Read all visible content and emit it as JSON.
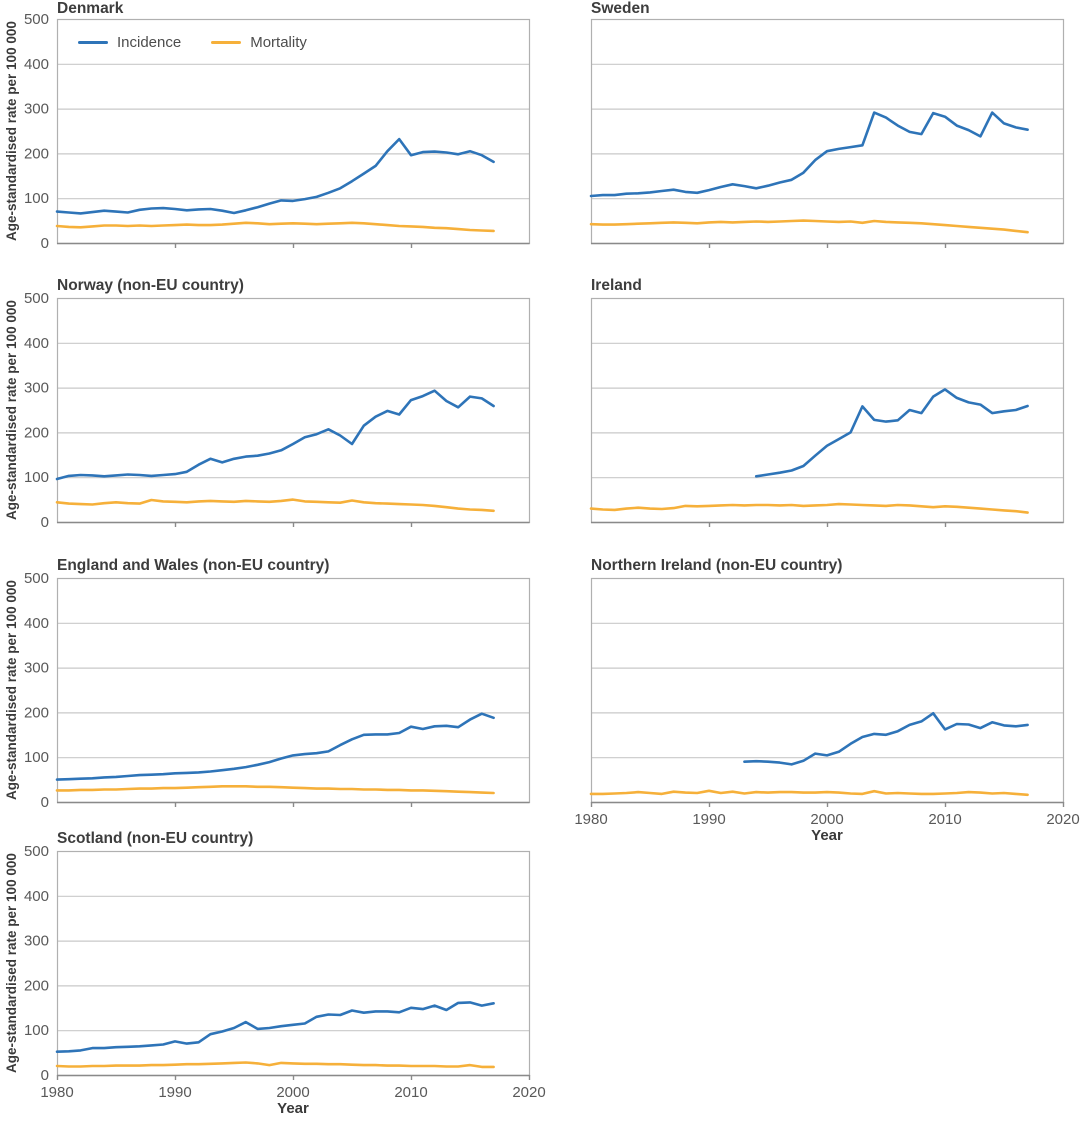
{
  "figure": {
    "panel_count": 7,
    "layout": "2-column grid, 4 rows"
  },
  "axes": {
    "x_label": "Year",
    "y_label": "Age-standardised rate per 100 000",
    "x_min": 1980,
    "x_max": 2020,
    "x_ticks": [
      1980,
      1990,
      2000,
      2010,
      2020
    ],
    "x_minor_ticks": [
      1990,
      2000,
      2010
    ],
    "y_min": 0,
    "y_max": 500,
    "y_ticks": [
      0,
      100,
      200,
      300,
      400,
      500
    ],
    "grid": true,
    "year_step": 1
  },
  "legend": {
    "position": "top-left of first panel",
    "items": [
      {
        "label": "Incidence",
        "color": "#2e74b8"
      },
      {
        "label": "Mortality",
        "color": "#f6b03a"
      }
    ]
  },
  "colors": {
    "incidence": "#2e74b8",
    "mortality": "#f6b03a",
    "grid": "#c9c9c9",
    "frame": "#b0b0b0",
    "axis": "#8a8a8a",
    "tick_text": "#595959",
    "title_text": "#3d3d3d"
  },
  "chart_data": [
    {
      "type": "line",
      "title": "Denmark",
      "series": [
        {
          "name": "Incidence",
          "start_year": 1980,
          "values": [
            70,
            68,
            66,
            69,
            72,
            70,
            68,
            74,
            77,
            78,
            76,
            73,
            75,
            76,
            72,
            67,
            73,
            80,
            88,
            95,
            94,
            98,
            103,
            112,
            122,
            138,
            155,
            172,
            205,
            232,
            196,
            203,
            204,
            202,
            198,
            205,
            196,
            181
          ]
        },
        {
          "name": "Mortality",
          "start_year": 1980,
          "values": [
            38,
            36,
            35,
            37,
            39,
            39,
            38,
            39,
            38,
            39,
            40,
            41,
            40,
            40,
            41,
            43,
            45,
            44,
            42,
            43,
            44,
            43,
            42,
            43,
            44,
            45,
            44,
            42,
            40,
            38,
            37,
            36,
            34,
            33,
            31,
            29,
            28,
            27
          ]
        }
      ]
    },
    {
      "type": "line",
      "title": "Sweden",
      "series": [
        {
          "name": "Incidence",
          "start_year": 1980,
          "values": [
            105,
            107,
            107,
            110,
            111,
            113,
            116,
            119,
            114,
            112,
            118,
            125,
            131,
            127,
            122,
            128,
            135,
            141,
            157,
            185,
            205,
            210,
            214,
            218,
            291,
            280,
            262,
            248,
            243,
            290,
            282,
            262,
            252,
            238,
            291,
            267,
            258,
            253
          ]
        },
        {
          "name": "Mortality",
          "start_year": 1980,
          "values": [
            42,
            41,
            41,
            42,
            43,
            44,
            45,
            46,
            45,
            44,
            46,
            47,
            46,
            47,
            48,
            47,
            48,
            49,
            50,
            49,
            48,
            47,
            48,
            45,
            49,
            47,
            46,
            45,
            44,
            42,
            40,
            38,
            36,
            34,
            32,
            30,
            27,
            24
          ]
        }
      ]
    },
    {
      "type": "line",
      "title": "Norway (non-EU country)",
      "series": [
        {
          "name": "Incidence",
          "start_year": 1980,
          "values": [
            96,
            103,
            105,
            104,
            102,
            104,
            106,
            105,
            103,
            105,
            107,
            112,
            128,
            141,
            133,
            141,
            146,
            148,
            153,
            160,
            174,
            189,
            196,
            207,
            193,
            174,
            215,
            235,
            248,
            240,
            272,
            281,
            293,
            270,
            256,
            280,
            276,
            259
          ]
        },
        {
          "name": "Mortality",
          "start_year": 1980,
          "values": [
            44,
            41,
            40,
            39,
            42,
            44,
            42,
            41,
            49,
            46,
            45,
            44,
            46,
            47,
            46,
            45,
            47,
            46,
            45,
            47,
            50,
            46,
            45,
            44,
            43,
            48,
            44,
            42,
            41,
            40,
            39,
            38,
            36,
            33,
            30,
            28,
            27,
            25
          ]
        }
      ]
    },
    {
      "type": "line",
      "title": "Ireland",
      "series": [
        {
          "name": "Incidence",
          "start_year": 1994,
          "values": [
            102,
            106,
            110,
            115,
            125,
            148,
            170,
            185,
            200,
            258,
            228,
            224,
            227,
            250,
            243,
            280,
            296,
            277,
            267,
            262,
            243,
            247,
            250,
            259
          ]
        },
        {
          "name": "Mortality",
          "start_year": 1980,
          "values": [
            30,
            28,
            27,
            30,
            32,
            30,
            29,
            31,
            36,
            35,
            36,
            37,
            38,
            37,
            38,
            38,
            37,
            38,
            36,
            37,
            38,
            40,
            39,
            38,
            37,
            36,
            38,
            37,
            35,
            33,
            35,
            34,
            32,
            30,
            28,
            26,
            24,
            21
          ]
        }
      ]
    },
    {
      "type": "line",
      "title": "England and Wales (non-EU country)",
      "series": [
        {
          "name": "Incidence",
          "start_year": 1980,
          "values": [
            50,
            51,
            52,
            53,
            55,
            56,
            58,
            60,
            61,
            62,
            64,
            65,
            66,
            68,
            71,
            74,
            78,
            83,
            89,
            97,
            104,
            107,
            109,
            113,
            127,
            140,
            150,
            151,
            151,
            154,
            168,
            163,
            169,
            170,
            167,
            184,
            197,
            188
          ]
        },
        {
          "name": "Mortality",
          "start_year": 1980,
          "values": [
            26,
            26,
            27,
            27,
            28,
            28,
            29,
            30,
            30,
            31,
            31,
            32,
            33,
            34,
            35,
            35,
            35,
            34,
            34,
            33,
            32,
            31,
            30,
            30,
            29,
            29,
            28,
            28,
            27,
            27,
            26,
            26,
            25,
            24,
            23,
            22,
            21,
            20
          ]
        }
      ]
    },
    {
      "type": "line",
      "title": "Northern Ireland (non-EU country)",
      "series": [
        {
          "name": "Incidence",
          "start_year": 1993,
          "values": [
            90,
            91,
            90,
            88,
            84,
            92,
            108,
            104,
            112,
            130,
            145,
            152,
            150,
            158,
            172,
            180,
            198,
            162,
            174,
            173,
            165,
            178,
            171,
            169,
            172
          ]
        },
        {
          "name": "Mortality",
          "start_year": 1980,
          "values": [
            18,
            18,
            19,
            20,
            22,
            20,
            18,
            23,
            21,
            20,
            25,
            20,
            23,
            19,
            22,
            21,
            22,
            22,
            21,
            21,
            22,
            21,
            19,
            18,
            24,
            19,
            20,
            19,
            18,
            18,
            19,
            20,
            22,
            21,
            19,
            20,
            18,
            16
          ]
        }
      ]
    },
    {
      "type": "line",
      "title": "Scotland (non-EU country)",
      "series": [
        {
          "name": "Incidence",
          "start_year": 1980,
          "values": [
            52,
            53,
            55,
            60,
            60,
            62,
            63,
            64,
            66,
            68,
            75,
            70,
            73,
            91,
            97,
            105,
            118,
            103,
            105,
            109,
            112,
            115,
            130,
            135,
            134,
            144,
            139,
            142,
            142,
            140,
            150,
            147,
            155,
            145,
            161,
            162,
            155,
            160
          ]
        },
        {
          "name": "Mortality",
          "start_year": 1980,
          "values": [
            20,
            19,
            19,
            20,
            20,
            21,
            21,
            21,
            22,
            22,
            23,
            24,
            24,
            25,
            26,
            27,
            28,
            26,
            22,
            27,
            26,
            25,
            25,
            24,
            24,
            23,
            22,
            22,
            21,
            21,
            20,
            20,
            20,
            19,
            19,
            22,
            18,
            18
          ]
        }
      ]
    }
  ]
}
